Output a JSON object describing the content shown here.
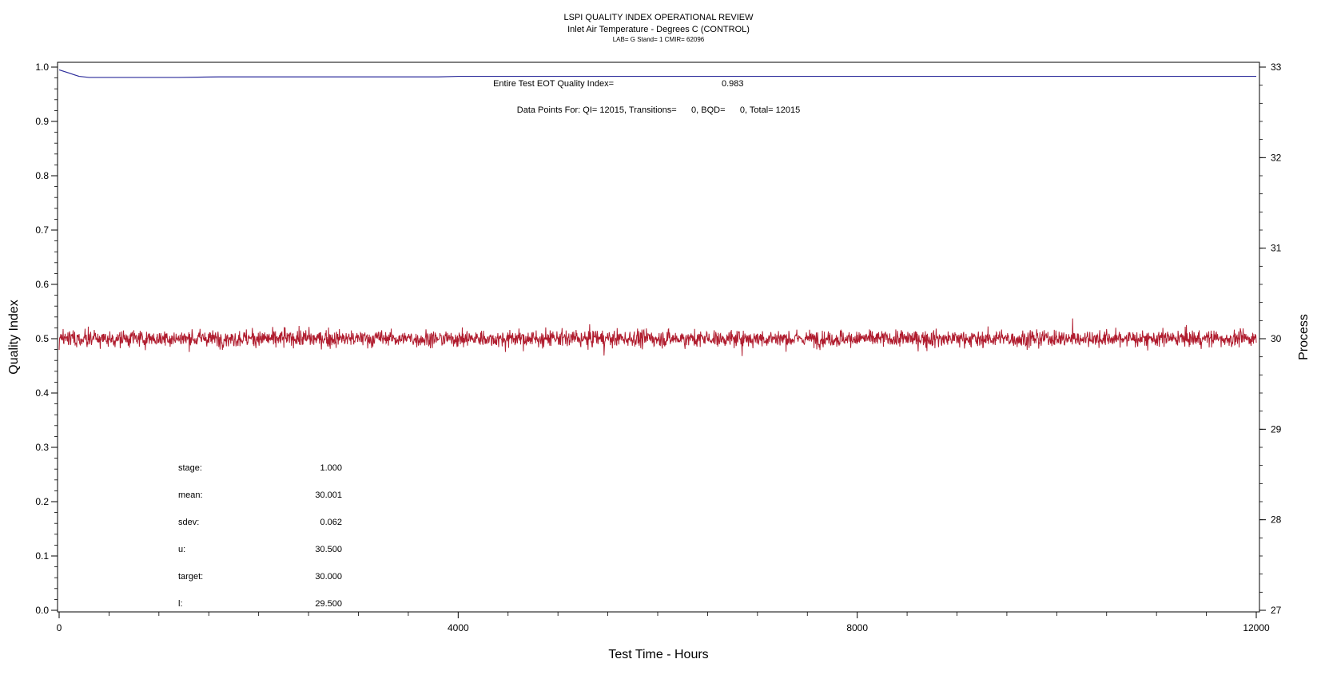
{
  "chart_data": {
    "type": "line",
    "title": "LSPI QUALITY INDEX OPERATIONAL REVIEW",
    "subtitle": "Inlet Air Temperature - Degrees C (CONTROL)",
    "subtitle2": "LAB= G Stand= 1 CMIR= 62096",
    "xlabel": "Test Time - Hours",
    "ylabel": "Quality Index",
    "y2label": "Process",
    "xlim": [
      0,
      12000
    ],
    "ylim": [
      0.0,
      1.0
    ],
    "y2lim": [
      27,
      33
    ],
    "x_ticks": [
      "0",
      "4000",
      "8000",
      "12000"
    ],
    "y_ticks": [
      "0.0",
      "0.1",
      "0.2",
      "0.3",
      "0.4",
      "0.5",
      "0.6",
      "0.7",
      "0.8",
      "0.9",
      "1.0"
    ],
    "y2_ticks": [
      "27",
      "28",
      "29",
      "30",
      "31",
      "32",
      "33"
    ],
    "grid": false,
    "series": [
      {
        "role": "quality-index",
        "axis": "left",
        "color": "#2b2b9a",
        "x": [
          0,
          50,
          100,
          150,
          200,
          300,
          500,
          800,
          1200,
          1600,
          2400,
          3200,
          3800,
          4000,
          6000,
          8000,
          10000,
          12000
        ],
        "y": [
          0.995,
          0.992,
          0.989,
          0.986,
          0.983,
          0.981,
          0.981,
          0.981,
          0.981,
          0.982,
          0.982,
          0.982,
          0.982,
          0.983,
          0.983,
          0.983,
          0.983,
          0.983
        ]
      },
      {
        "role": "process",
        "axis": "right",
        "color": "#b01c2e",
        "description": "noisy process trace",
        "x_range": [
          0,
          12000
        ],
        "mean": 30.001,
        "sdev": 0.062,
        "points": 12015
      }
    ],
    "annotations": {
      "eot_label": "Entire Test EOT Quality Index=",
      "eot_value": "0.983",
      "points_label": "Data Points For: QI= 12015, Transitions=      0, BQD=      0, Total= 12015"
    },
    "stats": [
      {
        "label": "stage:",
        "value": "1.000"
      },
      {
        "label": "mean:",
        "value": "30.001"
      },
      {
        "label": "sdev:",
        "value": "0.062"
      },
      {
        "label": "u:",
        "value": "30.500"
      },
      {
        "label": "target:",
        "value": "30.000"
      },
      {
        "label": "l:",
        "value": "29.500"
      }
    ]
  }
}
